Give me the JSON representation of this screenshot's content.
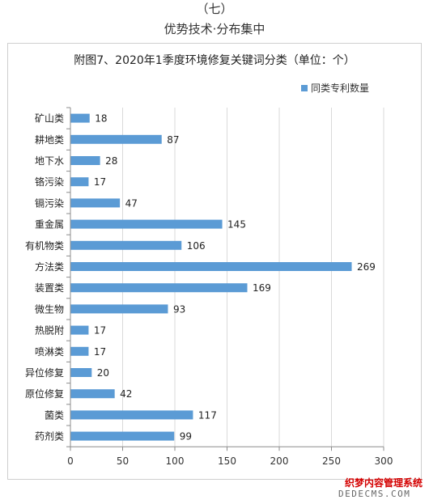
{
  "header": {
    "section_number": "（七）",
    "section_title": "优势技术·分布集中"
  },
  "watermark": {
    "line1": "织梦内容管理系统",
    "line2": "DEDECMS.COM"
  },
  "colors": {
    "bar": "#5b9bd5",
    "grid": "#d9d9d9",
    "axis": "#8c8c8c"
  },
  "chart_data": {
    "type": "bar",
    "orientation": "horizontal",
    "title": "附图7、2020年1季度环境修复关键词分类（单位：个）",
    "xlabel": "",
    "ylabel": "",
    "xlim": [
      0,
      300
    ],
    "x_ticks": [
      0,
      50,
      100,
      150,
      200,
      250,
      300
    ],
    "grid": true,
    "legend_position": "top-right",
    "categories": [
      "矿山类",
      "耕地类",
      "地下水",
      "铬污染",
      "镉污染",
      "重金属",
      "有机物类",
      "方法类",
      "装置类",
      "微生物",
      "热脱附",
      "喷淋类",
      "异位修复",
      "原位修复",
      "菌类",
      "药剂类"
    ],
    "series": [
      {
        "name": "同类专利数量",
        "values": [
          18,
          87,
          28,
          17,
          47,
          145,
          106,
          269,
          169,
          93,
          17,
          17,
          20,
          42,
          117,
          99
        ]
      }
    ]
  }
}
